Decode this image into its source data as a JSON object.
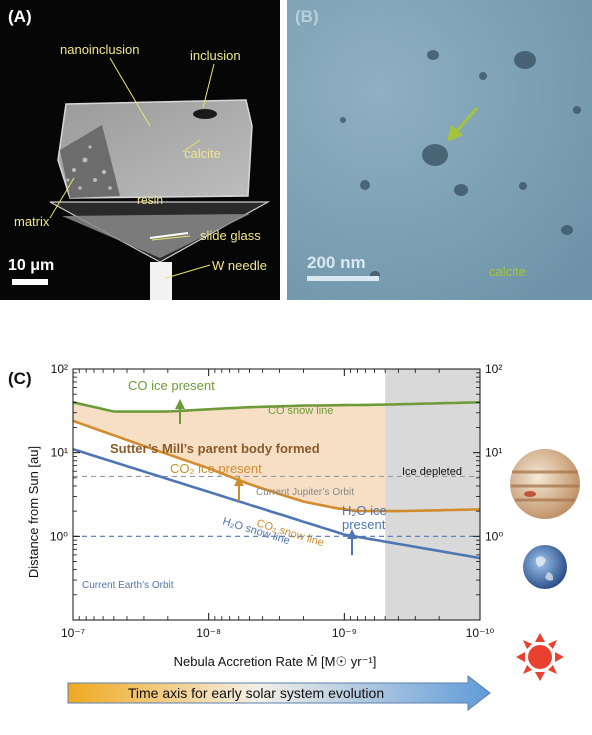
{
  "panel_a": {
    "label": "(A)",
    "annotations": {
      "nanoinclusion": "nanoinclusion",
      "inclusion": "inclusion",
      "calcite": "calcite",
      "resin": "resin",
      "matrix": "matrix",
      "slide_glass": "slide glass",
      "w_needle": "W needle"
    },
    "scale_bar": "10 μm"
  },
  "panel_b": {
    "label": "(B)",
    "scale_bar": "200 nm",
    "calcite": "calcite"
  },
  "panel_c": {
    "label": "(C)",
    "texts": {
      "co_ice": "CO ice present",
      "co_snow_line": "CO snow line",
      "parent_body": "Sutter’s Mill’s parent body formed",
      "co2_ice": "CO₂ ice present",
      "jupiter_orbit": "Current Jupiter’s Orbit",
      "co2_snow_line": "CO₂ snow line",
      "h2o_ice_1": "H₂O ice",
      "h2o_ice_2": "present",
      "h2o_snow_line": "H₂O snow line",
      "earth_orbit": "Current Earth’s Orbit",
      "ice_depleted": "Ice depleted",
      "time_axis": "Time axis for early solar system evolution"
    },
    "colors": {
      "co": "#6f9a3a",
      "co2": "#d18d2d",
      "h2o": "#4f76b3",
      "fill": "#f6dfc4",
      "shade": "#d9d9d9",
      "arrow_start": "#f0a91f",
      "arrow_end": "#5f9bd8",
      "sun": "#e8412f"
    },
    "chart_data": {
      "type": "line",
      "xlabel": "Nebula Accretion Rate  Ṁ  [M☉ yr⁻¹]",
      "ylabel": "Distance from Sun  [au]",
      "x_scale": "log",
      "x_direction": "decreasing",
      "y_scale": "log",
      "xlim": [
        1e-07,
        1e-10
      ],
      "ylim": [
        0.1,
        100
      ],
      "x_ticks": [
        "10⁻⁷",
        "10⁻⁸",
        "10⁻⁹",
        "10⁻¹⁰"
      ],
      "y_ticks": [
        "10⁰",
        "10¹",
        "10²"
      ],
      "series": [
        {
          "name": "CO snow line",
          "x": [
            1e-07,
            5e-08,
            2e-08,
            1e-08,
            5e-09,
            2e-09,
            1e-09,
            5e-10,
            1e-10
          ],
          "y": [
            40,
            31,
            31,
            33,
            35,
            36.5,
            37,
            37.5,
            40
          ]
        },
        {
          "name": "CO₂ snow line",
          "x": [
            1e-07,
            3e-08,
            1e-08,
            5e-09,
            3e-09,
            2e-09,
            1.2e-09,
            8e-10,
            4e-10,
            1e-10
          ],
          "y": [
            24,
            12,
            6.5,
            4.2,
            3.2,
            2.6,
            2.2,
            2.0,
            2.0,
            2.1
          ]
        },
        {
          "name": "H₂O snow line",
          "x": [
            1e-07,
            1e-08,
            1e-09,
            1e-10
          ],
          "y": [
            11,
            3.4,
            1.05,
            0.55
          ]
        }
      ],
      "reference_lines": [
        {
          "name": "Current Jupiter’s Orbit",
          "y": 5.2
        },
        {
          "name": "Current Earth’s Orbit",
          "y": 1.0
        }
      ],
      "shaded_region": {
        "label": "Ice depleted",
        "x": [
          5e-10,
          1e-10
        ]
      }
    }
  }
}
